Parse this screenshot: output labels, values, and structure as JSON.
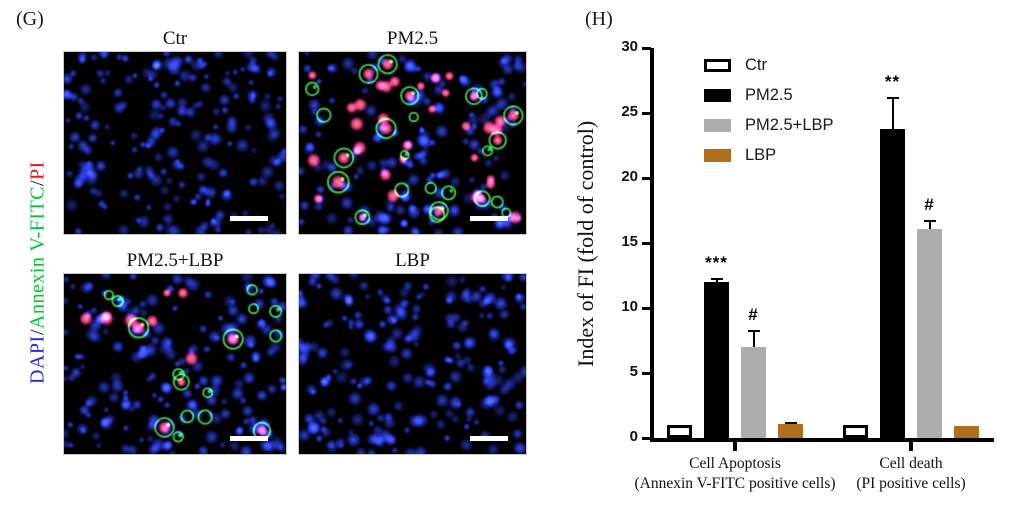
{
  "figure": {
    "panel_g": {
      "label": "(G)",
      "axis_label_parts": [
        {
          "text": "DAPI",
          "color": "#2626dd"
        },
        {
          "text": "/",
          "color": "#111111"
        },
        {
          "text": "Annexin V-FITC",
          "color": "#00c435"
        },
        {
          "text": "/",
          "color": "#111111"
        },
        {
          "text": "PI",
          "color": "#ee1414"
        }
      ],
      "tiles": [
        {
          "label": "Ctr",
          "blue_cells": 200,
          "green_cells": 0,
          "pink_cells": 0
        },
        {
          "label": "PM2.5",
          "blue_cells": 175,
          "green_cells": 24,
          "pink_cells": 42
        },
        {
          "label": "PM2.5+LBP",
          "blue_cells": 190,
          "green_cells": 16,
          "pink_cells": 13
        },
        {
          "label": "LBP",
          "blue_cells": 205,
          "green_cells": 0,
          "pink_cells": 0
        }
      ],
      "micrograph_colors": {
        "background": "#000000",
        "nucleus_blue": "#2b3ce0",
        "annexin_green": "#3bd94e",
        "pi_pink": "#f0308a"
      }
    },
    "panel_h": {
      "label": "(H)"
    }
  },
  "chart_data": {
    "type": "bar",
    "title": "",
    "ylabel": "Index of FI (fold of control)",
    "ylim": [
      0,
      30
    ],
    "ytick_step": 5,
    "yticks": [
      0,
      5,
      10,
      15,
      20,
      25,
      30
    ],
    "grid": false,
    "legend_position": "inside top-left",
    "categories": [
      {
        "line1": "Cell Apoptosis",
        "line2": "(Annexin V-FITC positive cells)"
      },
      {
        "line1": "Cell death",
        "line2": "(PI positive cells)"
      }
    ],
    "series": [
      {
        "name": "Ctr",
        "color": "#ffffff",
        "border": "#000000",
        "values": [
          1.0,
          1.0
        ],
        "errors": [
          0,
          0
        ],
        "sig": [
          "",
          ""
        ]
      },
      {
        "name": "PM2.5",
        "color": "#000000",
        "border": "#000000",
        "values": [
          12.0,
          23.8
        ],
        "errors": [
          0.3,
          2.4
        ],
        "sig": [
          "***",
          "**"
        ]
      },
      {
        "name": "PM2.5+LBP",
        "color": "#adadad",
        "border": "#adadad",
        "values": [
          7.0,
          16.1
        ],
        "errors": [
          1.3,
          0.7
        ],
        "sig": [
          "#",
          "#"
        ]
      },
      {
        "name": "LBP",
        "color": "#b06f1e",
        "border": "#b06f1e",
        "values": [
          1.05,
          0.95
        ],
        "errors": [
          0.15,
          0
        ],
        "sig": [
          "",
          ""
        ]
      }
    ]
  }
}
